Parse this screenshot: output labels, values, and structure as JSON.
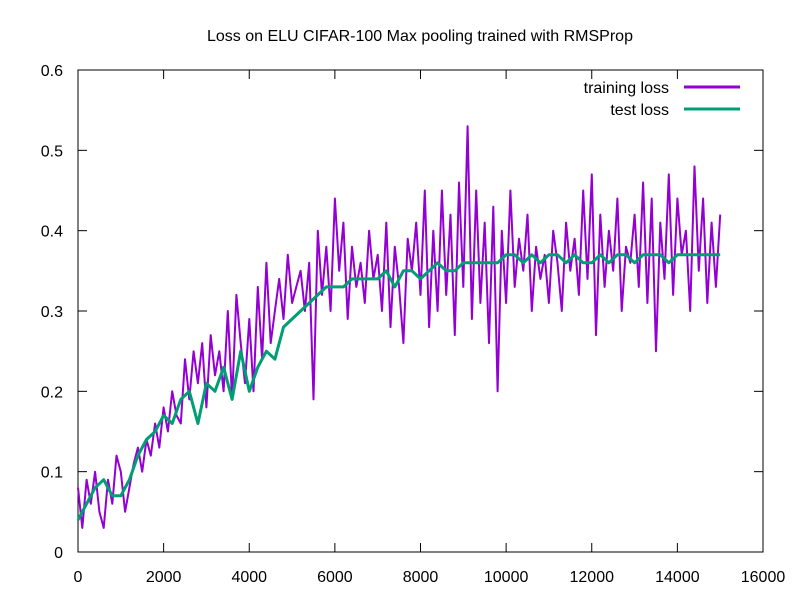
{
  "chart_data": {
    "type": "line",
    "title": "Loss on ELU CIFAR-100 Max pooling trained with RMSProp",
    "xlabel": "",
    "ylabel": "",
    "xlim": [
      0,
      16000
    ],
    "ylim": [
      0,
      0.6
    ],
    "x_ticks": [
      0,
      2000,
      4000,
      6000,
      8000,
      10000,
      12000,
      14000,
      16000
    ],
    "y_ticks": [
      0,
      0.1,
      0.2,
      0.3,
      0.4,
      0.5,
      0.6
    ],
    "grid": false,
    "legend_position": "top-right",
    "series": [
      {
        "name": "training loss",
        "color": "#9400d3",
        "x": [
          0,
          100,
          200,
          300,
          400,
          500,
          600,
          700,
          800,
          900,
          1000,
          1100,
          1200,
          1300,
          1400,
          1500,
          1600,
          1700,
          1800,
          1900,
          2000,
          2100,
          2200,
          2300,
          2400,
          2500,
          2600,
          2700,
          2800,
          2900,
          3000,
          3100,
          3200,
          3300,
          3400,
          3500,
          3600,
          3700,
          3800,
          3900,
          4000,
          4100,
          4200,
          4300,
          4400,
          4500,
          4600,
          4700,
          4800,
          4900,
          5000,
          5100,
          5200,
          5300,
          5400,
          5500,
          5600,
          5700,
          5800,
          5900,
          6000,
          6100,
          6200,
          6300,
          6400,
          6500,
          6600,
          6700,
          6800,
          6900,
          7000,
          7100,
          7200,
          7300,
          7400,
          7500,
          7600,
          7700,
          7800,
          7900,
          8000,
          8100,
          8200,
          8300,
          8400,
          8500,
          8600,
          8700,
          8800,
          8900,
          9000,
          9100,
          9200,
          9300,
          9400,
          9500,
          9600,
          9700,
          9800,
          9900,
          10000,
          10100,
          10200,
          10300,
          10400,
          10500,
          10600,
          10700,
          10800,
          10900,
          11000,
          11100,
          11200,
          11300,
          11400,
          11500,
          11600,
          11700,
          11800,
          11900,
          12000,
          12100,
          12200,
          12300,
          12400,
          12500,
          12600,
          12700,
          12800,
          12900,
          13000,
          13100,
          13200,
          13300,
          13400,
          13500,
          13600,
          13700,
          13800,
          13900,
          14000,
          14100,
          14200,
          14300,
          14400,
          14500,
          14600,
          14700,
          14800,
          14900,
          15000
        ],
        "values": [
          0.08,
          0.03,
          0.09,
          0.06,
          0.1,
          0.05,
          0.03,
          0.09,
          0.06,
          0.12,
          0.1,
          0.05,
          0.08,
          0.11,
          0.13,
          0.1,
          0.14,
          0.12,
          0.16,
          0.13,
          0.18,
          0.15,
          0.2,
          0.17,
          0.16,
          0.24,
          0.19,
          0.25,
          0.21,
          0.26,
          0.18,
          0.27,
          0.22,
          0.25,
          0.2,
          0.3,
          0.19,
          0.32,
          0.26,
          0.21,
          0.29,
          0.2,
          0.33,
          0.24,
          0.36,
          0.26,
          0.3,
          0.34,
          0.29,
          0.37,
          0.31,
          0.33,
          0.35,
          0.3,
          0.36,
          0.19,
          0.4,
          0.32,
          0.38,
          0.3,
          0.44,
          0.35,
          0.41,
          0.29,
          0.38,
          0.33,
          0.36,
          0.31,
          0.4,
          0.34,
          0.37,
          0.3,
          0.41,
          0.28,
          0.38,
          0.33,
          0.26,
          0.39,
          0.35,
          0.41,
          0.32,
          0.45,
          0.28,
          0.4,
          0.3,
          0.45,
          0.32,
          0.42,
          0.27,
          0.46,
          0.33,
          0.53,
          0.29,
          0.45,
          0.31,
          0.41,
          0.26,
          0.43,
          0.2,
          0.4,
          0.31,
          0.45,
          0.33,
          0.39,
          0.35,
          0.42,
          0.3,
          0.38,
          0.34,
          0.37,
          0.31,
          0.4,
          0.36,
          0.3,
          0.41,
          0.35,
          0.39,
          0.32,
          0.45,
          0.34,
          0.47,
          0.27,
          0.42,
          0.33,
          0.4,
          0.35,
          0.44,
          0.3,
          0.38,
          0.36,
          0.42,
          0.33,
          0.46,
          0.31,
          0.44,
          0.25,
          0.41,
          0.34,
          0.47,
          0.32,
          0.44,
          0.37,
          0.4,
          0.3,
          0.48,
          0.35,
          0.44,
          0.31,
          0.41,
          0.33,
          0.42
        ]
      },
      {
        "name": "test loss",
        "color": "#009e73",
        "x": [
          0,
          200,
          400,
          600,
          800,
          1000,
          1200,
          1400,
          1600,
          1800,
          2000,
          2200,
          2400,
          2600,
          2800,
          3000,
          3200,
          3400,
          3600,
          3800,
          4000,
          4200,
          4400,
          4600,
          4800,
          5000,
          5200,
          5400,
          5600,
          5800,
          6000,
          6200,
          6400,
          6600,
          6800,
          7000,
          7200,
          7400,
          7600,
          7800,
          8000,
          8200,
          8400,
          8600,
          8800,
          9000,
          9200,
          9400,
          9600,
          9800,
          10000,
          10200,
          10400,
          10600,
          10800,
          11000,
          11200,
          11400,
          11600,
          11800,
          12000,
          12200,
          12400,
          12600,
          12800,
          13000,
          13200,
          13400,
          13600,
          13800,
          14000,
          14200,
          14400,
          14600,
          14800,
          15000
        ],
        "values": [
          0.04,
          0.06,
          0.08,
          0.09,
          0.07,
          0.07,
          0.09,
          0.12,
          0.14,
          0.15,
          0.17,
          0.16,
          0.19,
          0.2,
          0.16,
          0.21,
          0.2,
          0.23,
          0.19,
          0.25,
          0.2,
          0.23,
          0.25,
          0.24,
          0.28,
          0.29,
          0.3,
          0.31,
          0.32,
          0.33,
          0.33,
          0.33,
          0.34,
          0.34,
          0.34,
          0.34,
          0.35,
          0.33,
          0.35,
          0.35,
          0.34,
          0.35,
          0.36,
          0.35,
          0.35,
          0.36,
          0.36,
          0.36,
          0.36,
          0.36,
          0.37,
          0.37,
          0.36,
          0.37,
          0.36,
          0.37,
          0.37,
          0.36,
          0.37,
          0.36,
          0.36,
          0.37,
          0.36,
          0.37,
          0.37,
          0.36,
          0.37,
          0.37,
          0.37,
          0.36,
          0.37,
          0.37,
          0.37,
          0.37,
          0.37,
          0.37
        ]
      }
    ]
  }
}
